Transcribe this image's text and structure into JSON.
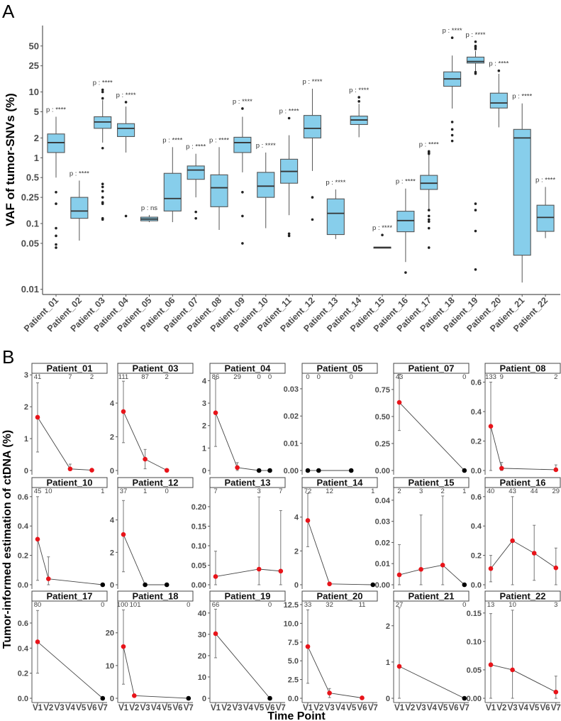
{
  "panel_labels": {
    "a": "A",
    "b": "B"
  },
  "chart_data": [
    {
      "type": "box",
      "panel": "A",
      "ylabel": "VAF of tumor-SNVs (%)",
      "yscale": "log",
      "ylim": [
        0.0083,
        100
      ],
      "yticks": [
        "0.01",
        "0.05",
        "0.1",
        "0.25",
        "0.5",
        "1",
        "2",
        "5",
        "10",
        "25",
        "50"
      ],
      "fill_color": "#87ceeb",
      "boxes": [
        {
          "name": "Patient_01",
          "lo": 0.5,
          "q1": 1.2,
          "median": 1.7,
          "q3": 2.3,
          "hi": 4.2,
          "outliers": [
            0.3,
            0.2,
            0.085,
            0.065,
            0.048,
            0.043
          ],
          "p": "p : ****"
        },
        {
          "name": "Patient_02",
          "lo": 0.055,
          "q1": 0.12,
          "median": 0.155,
          "q3": 0.25,
          "hi": 0.45,
          "outliers": [],
          "p": "p : ****"
        },
        {
          "name": "Patient_03",
          "lo": 1.7,
          "q1": 2.8,
          "median": 3.5,
          "q3": 4.2,
          "hi": 7.5,
          "outliers": [
            10.8,
            10,
            8,
            1.4,
            0.4,
            0.36,
            0.31,
            0.25,
            0.21,
            0.2,
            0.12,
            0.115
          ],
          "p": "p : ****"
        },
        {
          "name": "Patient_04",
          "lo": 1.2,
          "q1": 2.1,
          "median": 2.8,
          "q3": 3.3,
          "hi": 6,
          "outliers": [
            7,
            0.13
          ],
          "p": "p : ****"
        },
        {
          "name": "Patient_05",
          "lo": 0.105,
          "q1": 0.11,
          "median": 0.117,
          "q3": 0.125,
          "hi": 0.135,
          "outliers": [],
          "p": "p : ns"
        },
        {
          "name": "Patient_06",
          "lo": 0.105,
          "q1": 0.155,
          "median": 0.24,
          "q3": 0.58,
          "hi": 1.45,
          "outliers": [],
          "p": "p : ****"
        },
        {
          "name": "Patient_07",
          "lo": 0.25,
          "q1": 0.47,
          "median": 0.65,
          "q3": 0.75,
          "hi": 1.15,
          "outliers": [
            0.15,
            0.12
          ],
          "p": "p : ****"
        },
        {
          "name": "Patient_08",
          "lo": 0.08,
          "q1": 0.18,
          "median": 0.35,
          "q3": 0.55,
          "hi": 1.45,
          "outliers": [],
          "p": "p : ****"
        },
        {
          "name": "Patient_09",
          "lo": 0.6,
          "q1": 1.2,
          "median": 1.7,
          "q3": 2.05,
          "hi": 4.2,
          "outliers": [
            5.6,
            0.3,
            0.13,
            0.05
          ],
          "p": "p : ****"
        },
        {
          "name": "Patient_10",
          "lo": 0.085,
          "q1": 0.25,
          "median": 0.37,
          "q3": 0.6,
          "hi": 1.2,
          "outliers": [],
          "p": "p : ****"
        },
        {
          "name": "Patient_11",
          "lo": 0.134,
          "q1": 0.41,
          "median": 0.62,
          "q3": 0.95,
          "hi": 2.2,
          "outliers": [
            4,
            0.07,
            0.065
          ],
          "p": "p : ****"
        },
        {
          "name": "Patient_12",
          "lo": 0.63,
          "q1": 2.0,
          "median": 2.8,
          "q3": 4.4,
          "hi": 11.2,
          "outliers": [
            0.25,
            0.115
          ],
          "p": "p : ****"
        },
        {
          "name": "Patient_13",
          "lo": 0.058,
          "q1": 0.068,
          "median": 0.143,
          "q3": 0.237,
          "hi": 0.33,
          "outliers": [],
          "p": "p : ****"
        },
        {
          "name": "Patient_14",
          "lo": 2.05,
          "q1": 3.2,
          "median": 3.75,
          "q3": 4.3,
          "hi": 6.6,
          "outliers": [
            8.3,
            7.2
          ],
          "p": "p : ****"
        },
        {
          "name": "Patient_15",
          "lo": 0.0425,
          "q1": 0.0428,
          "median": 0.0433,
          "q3": 0.0438,
          "hi": 0.044,
          "outliers": [
            0.067
          ],
          "p": "p : ****"
        },
        {
          "name": "Patient_16",
          "lo": 0.026,
          "q1": 0.075,
          "median": 0.111,
          "q3": 0.154,
          "hi": 0.34,
          "outliers": [
            0.018
          ],
          "p": "p : ****"
        },
        {
          "name": "Patient_17",
          "lo": 0.16,
          "q1": 0.33,
          "median": 0.41,
          "q3": 0.54,
          "hi": 1.1,
          "outliers": [
            1.25,
            1.2,
            1.15,
            0.16,
            0.13,
            0.115,
            0.107,
            0.085,
            0.043
          ],
          "p": "p : ****"
        },
        {
          "name": "Patient_18",
          "lo": 5.6,
          "q1": 12.2,
          "median": 15.8,
          "q3": 20.2,
          "hi": 35.8,
          "outliers": [
            66.7,
            3.5,
            2.7,
            2.2,
            1.8
          ],
          "p": "p : ****"
        },
        {
          "name": "Patient_19",
          "lo": 20.5,
          "q1": 27.5,
          "median": 29.1,
          "q3": 33.9,
          "hi": 42,
          "outliers": [
            58,
            50,
            48,
            45,
            20,
            19,
            0.2,
            0.16,
            0.077,
            0.02
          ],
          "p": "p : ****"
        },
        {
          "name": "Patient_20",
          "lo": 2.9,
          "q1": 5.7,
          "median": 6.8,
          "q3": 9.6,
          "hi": 18.9,
          "outliers": [
            21
          ],
          "p": "p : ****"
        },
        {
          "name": "Patient_21",
          "lo": 0.0127,
          "q1": 0.033,
          "median": 2.0,
          "q3": 2.7,
          "hi": 6.7,
          "outliers": [],
          "p": "p : ****"
        },
        {
          "name": "Patient_22",
          "lo": 0.06,
          "q1": 0.076,
          "median": 0.124,
          "q3": 0.19,
          "hi": 0.36,
          "outliers": [],
          "p": "p : ****"
        }
      ]
    },
    {
      "type": "line",
      "panel": "B",
      "ylabel": "Tumor-informed estimation of ctDNA (%)",
      "xlabel": "Time Point",
      "x_ticks": [
        "V1",
        "V2",
        "V3",
        "V4",
        "V5",
        "V6",
        "V7"
      ],
      "colors": {
        "detected": "#e8141a",
        "not_detected": "#000000",
        "errorbar": "#777777"
      },
      "panels": [
        {
          "title": "Patient_01",
          "ylim": [
            0,
            3.05
          ],
          "yticks": [
            "0",
            "1",
            "2",
            "3"
          ],
          "points": [
            {
              "t": 1,
              "value": 1.67,
              "lo": 0.58,
              "hi": 2.75,
              "n": "41"
            },
            {
              "t": 4,
              "value": 0.05,
              "lo": 0,
              "hi": 0.2,
              "n": "7"
            },
            {
              "t": 6,
              "value": 0.01,
              "lo": 0,
              "hi": 0.02,
              "n": "2"
            }
          ]
        },
        {
          "title": "Patient_03",
          "ylim": [
            0,
            5.77
          ],
          "yticks": [
            "0",
            "2",
            "4"
          ],
          "points": [
            {
              "t": 1,
              "value": 3.5,
              "lo": 1.65,
              "hi": 5.3,
              "n": "111"
            },
            {
              "t": 3,
              "value": 0.67,
              "lo": 0.1,
              "hi": 1.25,
              "n": "87"
            },
            {
              "t": 5,
              "value": 0.01,
              "lo": 0,
              "hi": 0.02,
              "n": "2"
            }
          ]
        },
        {
          "title": "Patient_04",
          "ylim": [
            0,
            4.33
          ],
          "yticks": [
            "0",
            "1",
            "2",
            "3",
            "4"
          ],
          "points": [
            {
              "t": 1,
              "value": 2.57,
              "lo": 1.07,
              "hi": 4.07,
              "n": "86"
            },
            {
              "t": 3,
              "value": 0.13,
              "lo": 0,
              "hi": 0.35,
              "n": "29"
            },
            {
              "t": 5,
              "value": 0,
              "lo": 0,
              "hi": 0,
              "n": "0"
            },
            {
              "t": 6,
              "value": 0,
              "lo": 0,
              "hi": 0,
              "n": "0"
            }
          ]
        },
        {
          "title": "Patient_05",
          "ylim": [
            0,
            0.0357
          ],
          "yticks": [
            "0.00",
            "0.01",
            "0.02",
            "0.03"
          ],
          "points": [
            {
              "t": 1,
              "value": 0,
              "lo": 0,
              "hi": 0,
              "n": "0"
            },
            {
              "t": 2,
              "value": 0,
              "lo": 0,
              "hi": 0,
              "n": "0"
            },
            {
              "t": 5,
              "value": 0,
              "lo": 0,
              "hi": 0,
              "n": "0"
            }
          ]
        },
        {
          "title": "Patient_07",
          "ylim": [
            0,
            0.9
          ],
          "yticks": [
            "0.00",
            "0.25",
            "0.50",
            "0.75"
          ],
          "points": [
            {
              "t": 1,
              "value": 0.63,
              "lo": 0.37,
              "hi": 0.89,
              "n": "43"
            },
            {
              "t": 7,
              "value": 0,
              "lo": 0,
              "hi": 0,
              "n": "0"
            }
          ]
        },
        {
          "title": "Patient_08",
          "ylim": [
            0,
            0.66
          ],
          "yticks": [
            "0.0",
            "0.2",
            "0.4",
            "0.6"
          ],
          "points": [
            {
              "t": 1,
              "value": 0.3,
              "lo": 0,
              "hi": 0.6,
              "n": "133"
            },
            {
              "t": 2,
              "value": 0.015,
              "lo": 0,
              "hi": 0.055,
              "n": "9"
            },
            {
              "t": 7,
              "value": 0.005,
              "lo": 0,
              "hi": 0.038,
              "n": "2"
            }
          ]
        },
        {
          "title": "Patient_10",
          "ylim": [
            0,
            0.662
          ],
          "yticks": [
            "0.0",
            "0.2",
            "0.4",
            "0.6"
          ],
          "points": [
            {
              "t": 1,
              "value": 0.31,
              "lo": 0.03,
              "hi": 0.6,
              "n": "45"
            },
            {
              "t": 2,
              "value": 0.04,
              "lo": 0,
              "hi": 0.19,
              "n": "10"
            },
            {
              "t": 7,
              "value": 0,
              "lo": 0,
              "hi": 0,
              "n": "1"
            }
          ]
        },
        {
          "title": "Patient_12",
          "ylim": [
            0,
            6.0
          ],
          "yticks": [
            "0",
            "2",
            "4"
          ],
          "points": [
            {
              "t": 1,
              "value": 3.1,
              "lo": 0.8,
              "hi": 5.2,
              "n": "37"
            },
            {
              "t": 3,
              "value": 0,
              "lo": 0,
              "hi": 0,
              "n": "1"
            },
            {
              "t": 5,
              "value": 0,
              "lo": 0,
              "hi": 0,
              "n": "0"
            }
          ]
        },
        {
          "title": "Patient_13",
          "ylim": [
            0,
            0.249
          ],
          "yticks": [
            "0.00",
            "0.05",
            "0.10",
            "0.15",
            "0.20"
          ],
          "points": [
            {
              "t": 1,
              "value": 0.021,
              "lo": 0,
              "hi": 0.086,
              "n": "7"
            },
            {
              "t": 5,
              "value": 0.04,
              "lo": 0,
              "hi": 0.225,
              "n": "3"
            },
            {
              "t": 7,
              "value": 0.035,
              "lo": 0,
              "hi": 0.19,
              "n": "7"
            }
          ]
        },
        {
          "title": "Patient_14",
          "ylim": [
            0,
            5.75
          ],
          "yticks": [
            "0",
            "2",
            "4"
          ],
          "points": [
            {
              "t": 1,
              "value": 3.8,
              "lo": 2.25,
              "hi": 5.4,
              "n": "72"
            },
            {
              "t": 3,
              "value": 0.05,
              "lo": 0,
              "hi": 0.1,
              "n": "12"
            },
            {
              "t": 7,
              "value": 0,
              "lo": 0,
              "hi": 0,
              "n": "1"
            }
          ]
        },
        {
          "title": "Patient_15",
          "ylim": [
            0,
            0.046
          ],
          "yticks": [
            "0.00",
            "0.01",
            "0.02",
            "0.03",
            "0.04"
          ],
          "points": [
            {
              "t": 1,
              "value": 0.0047,
              "lo": 0,
              "hi": 0.019,
              "n": "2"
            },
            {
              "t": 3,
              "value": 0.0073,
              "lo": 0,
              "hi": 0.033,
              "n": "3"
            },
            {
              "t": 5,
              "value": 0.0093,
              "lo": 0,
              "hi": 0.042,
              "n": "2"
            },
            {
              "t": 7,
              "value": 0,
              "lo": 0,
              "hi": 0,
              "n": "1"
            }
          ]
        },
        {
          "title": "Patient_16",
          "ylim": [
            0,
            0.662
          ],
          "yticks": [
            "0.0",
            "0.2",
            "0.4",
            "0.6"
          ],
          "points": [
            {
              "t": 1,
              "value": 0.11,
              "lo": 0.02,
              "hi": 0.2,
              "n": "40"
            },
            {
              "t": 3,
              "value": 0.3,
              "lo": 0,
              "hi": 0.6,
              "n": "43"
            },
            {
              "t": 5,
              "value": 0.215,
              "lo": 0.03,
              "hi": 0.405,
              "n": "44"
            },
            {
              "t": 7,
              "value": 0.115,
              "lo": 0,
              "hi": 0.25,
              "n": "29"
            }
          ]
        },
        {
          "title": "Patient_17",
          "ylim": [
            0,
            0.775
          ],
          "yticks": [
            "0.0",
            "0.2",
            "0.4",
            "0.6"
          ],
          "points": [
            {
              "t": 1,
              "value": 0.45,
              "lo": 0.2,
              "hi": 0.7,
              "n": "80"
            },
            {
              "t": 7,
              "value": 0,
              "lo": 0,
              "hi": 0,
              "n": "0"
            }
          ]
        },
        {
          "title": "Patient_18",
          "ylim": [
            0,
            29.7
          ],
          "yticks": [
            "0",
            "10",
            "20"
          ],
          "points": [
            {
              "t": 1,
              "value": 15.8,
              "lo": 4.3,
              "hi": 27,
              "n": "100"
            },
            {
              "t": 2,
              "value": 0.8,
              "lo": 0.5,
              "hi": 1.1,
              "n": "101"
            },
            {
              "t": 7,
              "value": 0,
              "lo": 0,
              "hi": 0,
              "n": "0"
            }
          ]
        },
        {
          "title": "Patient_19",
          "ylim": [
            0,
            45.6
          ],
          "yticks": [
            "0",
            "10",
            "20",
            "30",
            "40"
          ],
          "points": [
            {
              "t": 1,
              "value": 30.3,
              "lo": 19,
              "hi": 41.8,
              "n": "66"
            },
            {
              "t": 6,
              "value": 0,
              "lo": 0,
              "hi": 0,
              "n": "0"
            }
          ]
        },
        {
          "title": "Patient_20",
          "ylim": [
            0,
            12.97
          ],
          "yticks": [
            "0.0",
            "2.5",
            "5.0",
            "7.5",
            "10.0",
            "12.5"
          ],
          "points": [
            {
              "t": 1,
              "value": 6.9,
              "lo": 2,
              "hi": 11.8,
              "n": "33"
            },
            {
              "t": 3,
              "value": 0.7,
              "lo": 0.1,
              "hi": 1.3,
              "n": "32"
            },
            {
              "t": 6,
              "value": 0.05,
              "lo": 0,
              "hi": 0.1,
              "n": "11"
            }
          ]
        },
        {
          "title": "Patient_21",
          "ylim": [
            0,
            2.68
          ],
          "yticks": [
            "0",
            "1",
            "2"
          ],
          "points": [
            {
              "t": 1,
              "value": 0.88,
              "lo": 0,
              "hi": 2.5,
              "n": "27"
            },
            {
              "t": 7,
              "value": 0,
              "lo": 0,
              "hi": 0,
              "n": "0"
            }
          ]
        },
        {
          "title": "Patient_22",
          "ylim": [
            0,
            0.171
          ],
          "yticks": [
            "0.00",
            "0.05",
            "0.10",
            "0.15"
          ],
          "points": [
            {
              "t": 1,
              "value": 0.059,
              "lo": 0,
              "hi": 0.149,
              "n": "13"
            },
            {
              "t": 3,
              "value": 0.05,
              "lo": 0,
              "hi": 0.155,
              "n": "10"
            },
            {
              "t": 7,
              "value": 0.011,
              "lo": 0,
              "hi": 0.039,
              "n": "3"
            }
          ]
        }
      ]
    }
  ]
}
